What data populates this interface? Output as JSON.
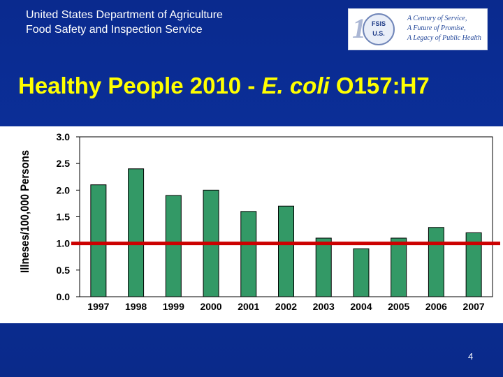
{
  "header": {
    "agency_line1": "United States Department of Agriculture",
    "agency_line2": "Food Safety and Inspection Service",
    "logo": {
      "big_number": "100",
      "seal_top": "FSIS",
      "seal_mid": "U.S.",
      "motto_line1": "A Century of Service,",
      "motto_line2": "A Future of Promise,",
      "motto_line3": "A Legacy of Public Health"
    }
  },
  "slide": {
    "title_prefix": "Healthy People 2010 - ",
    "title_italic": "E. coli",
    "title_suffix": " O157:H7",
    "page_number": "4"
  },
  "colors": {
    "background": "#0a2a8e",
    "title": "#ffff00",
    "bar_fill": "#339966",
    "target_line": "#cc0000"
  },
  "chart_data": {
    "type": "bar",
    "categories": [
      "1997",
      "1998",
      "1999",
      "2000",
      "2001",
      "2002",
      "2003",
      "2004",
      "2005",
      "2006",
      "2007"
    ],
    "values": [
      2.1,
      2.4,
      1.9,
      2.0,
      1.6,
      1.7,
      1.1,
      0.9,
      1.1,
      1.3,
      1.2
    ],
    "target_value": 1.0,
    "ylabel": "Illneses/100,000 Persons",
    "xlabel": "",
    "title": "",
    "ylim": [
      0,
      3.0
    ],
    "yticks": [
      "3.0",
      "2.5",
      "2.0",
      "1.5",
      "1.0",
      "0.5",
      "0.0"
    ],
    "grid": false,
    "legend": "none"
  }
}
